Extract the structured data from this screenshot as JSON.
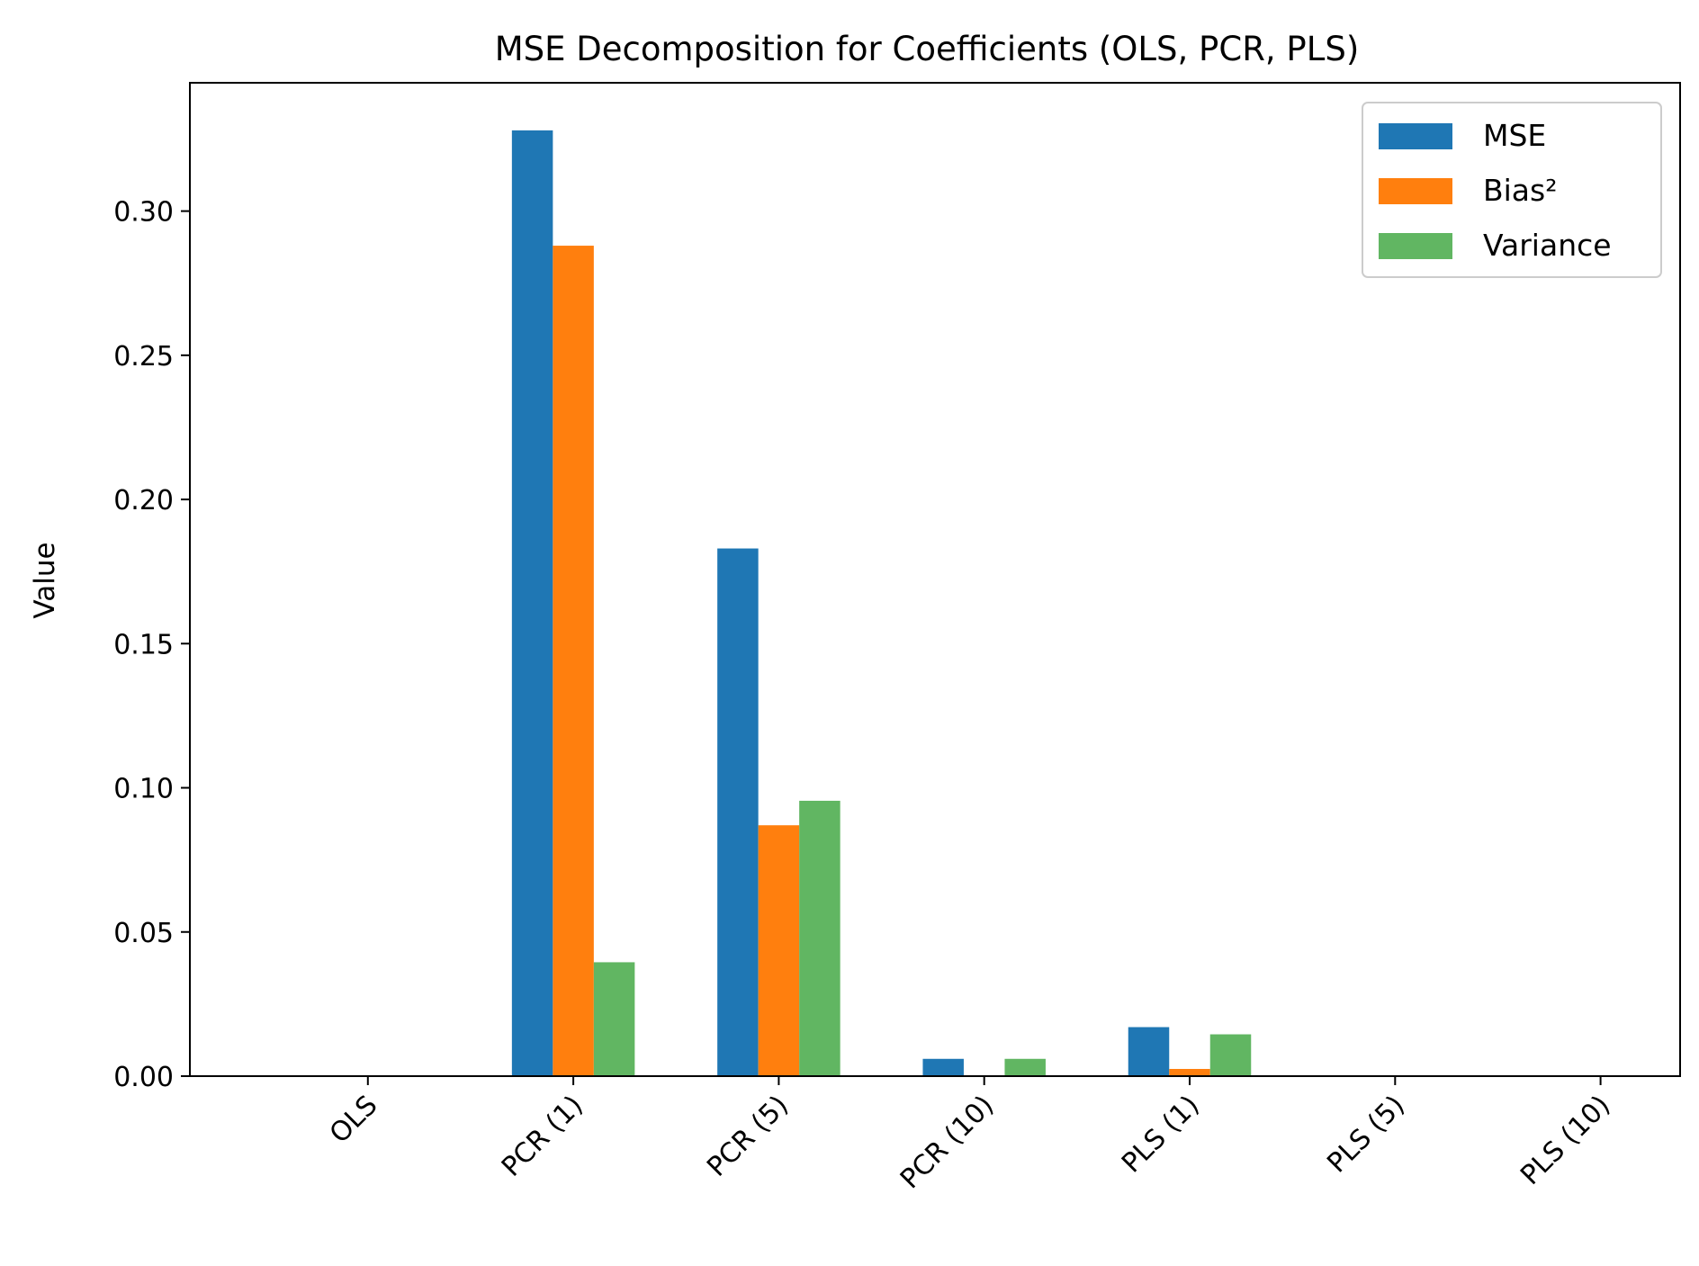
{
  "chart_data": {
    "type": "bar",
    "title": "MSE Decomposition for Coefficients (OLS, PCR, PLS)",
    "xlabel": "",
    "ylabel": "Value",
    "categories": [
      "OLS",
      "PCR (1)",
      "PCR (5)",
      "PCR (10)",
      "PLS (1)",
      "PLS (5)",
      "PLS (10)"
    ],
    "series": [
      {
        "name": "MSE",
        "color": "#1f77b4",
        "values": [
          0.0,
          0.328,
          0.183,
          0.006,
          0.017,
          0.0,
          0.0
        ]
      },
      {
        "name": "Bias²",
        "color": "#ff7f0e",
        "values": [
          0.0,
          0.288,
          0.087,
          0.0,
          0.0025,
          0.0,
          0.0
        ]
      },
      {
        "name": "Variance",
        "color": "#61b662",
        "values": [
          0.0,
          0.0395,
          0.0955,
          0.006,
          0.0145,
          0.0,
          0.0
        ]
      }
    ],
    "ylim": [
      0,
      0.3445
    ],
    "yticks": [
      "0.00",
      "0.05",
      "0.10",
      "0.15",
      "0.20",
      "0.25",
      "0.30"
    ],
    "grid": false,
    "legend_position": "top-right"
  }
}
